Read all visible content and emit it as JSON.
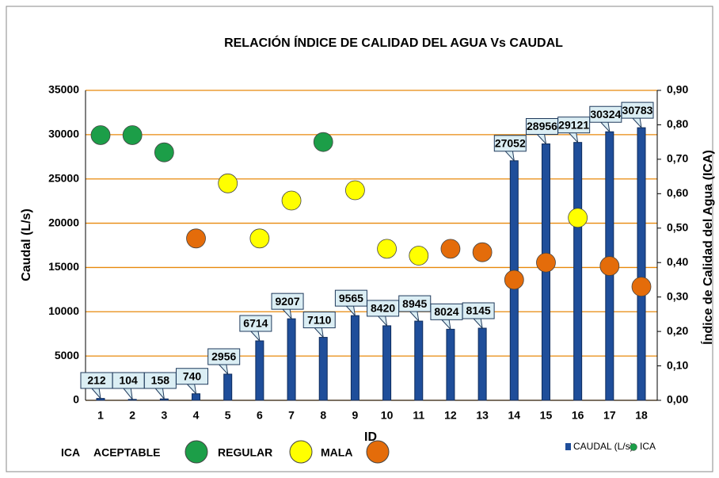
{
  "chart_data": {
    "type": "bar_scatter",
    "title": "RELACIÓN ÍNDICE DE CALIDAD DEL AGUA Vs CAUDAL",
    "x_label": "ID",
    "y_label": "Caudal (L/s)",
    "y2_label": "Índice de Calidad del Agua  (ICA)",
    "categories": [
      "1",
      "2",
      "3",
      "4",
      "5",
      "6",
      "7",
      "8",
      "9",
      "10",
      "11",
      "12",
      "13",
      "14",
      "15",
      "16",
      "17",
      "18"
    ],
    "series": [
      {
        "name": "CAUDAL (L/s)",
        "color": "#1f4e9a",
        "type": "bar",
        "values": [
          212,
          104,
          158,
          740,
          2956,
          6714,
          9207,
          7110,
          9565,
          8420,
          8945,
          8024,
          8145,
          27052,
          28956,
          29121,
          30324,
          30783
        ]
      },
      {
        "name": "ICA",
        "color": "#1c9e48",
        "type": "scatter",
        "axis": "y2",
        "values": [
          0.77,
          0.77,
          0.72,
          0.47,
          0.63,
          0.47,
          0.58,
          0.75,
          0.61,
          0.44,
          0.42,
          0.44,
          0.43,
          0.35,
          0.4,
          0.53,
          0.39,
          0.33
        ],
        "colors": [
          "#1c9e48",
          "#1c9e48",
          "#1c9e48",
          "#e46c0a",
          "#ffff00",
          "#ffff00",
          "#ffff00",
          "#1c9e48",
          "#ffff00",
          "#ffff00",
          "#ffff00",
          "#e46c0a",
          "#e46c0a",
          "#e46c0a",
          "#e46c0a",
          "#ffff00",
          "#e46c0a",
          "#e46c0a"
        ]
      }
    ],
    "ylim": [
      0,
      35000
    ],
    "yticks": [
      0,
      5000,
      10000,
      15000,
      20000,
      25000,
      30000,
      35000
    ],
    "y2lim": [
      0,
      0.9
    ],
    "y2ticks": [
      {
        "value": 0,
        "label": "0,00"
      },
      {
        "value": 0.1,
        "label": "0,10"
      },
      {
        "value": 0.2,
        "label": "0,20"
      },
      {
        "value": 0.3,
        "label": "0,30"
      },
      {
        "value": 0.4,
        "label": "0,40"
      },
      {
        "value": 0.5,
        "label": "0,50"
      },
      {
        "value": 0.6,
        "label": "0,60"
      },
      {
        "value": 0.7,
        "label": "0,70"
      },
      {
        "value": 0.8,
        "label": "0,80"
      },
      {
        "value": 0.9,
        "label": "0,90"
      }
    ],
    "grid": true,
    "grid_color": "#e8890c",
    "ica_legend_title": "ICA",
    "ica_legend": [
      {
        "label": "ACEPTABLE",
        "color": "#1c9e48"
      },
      {
        "label": "REGULAR",
        "color": "#ffff00"
      },
      {
        "label": "MALA",
        "color": "#e46c0a"
      }
    ]
  }
}
